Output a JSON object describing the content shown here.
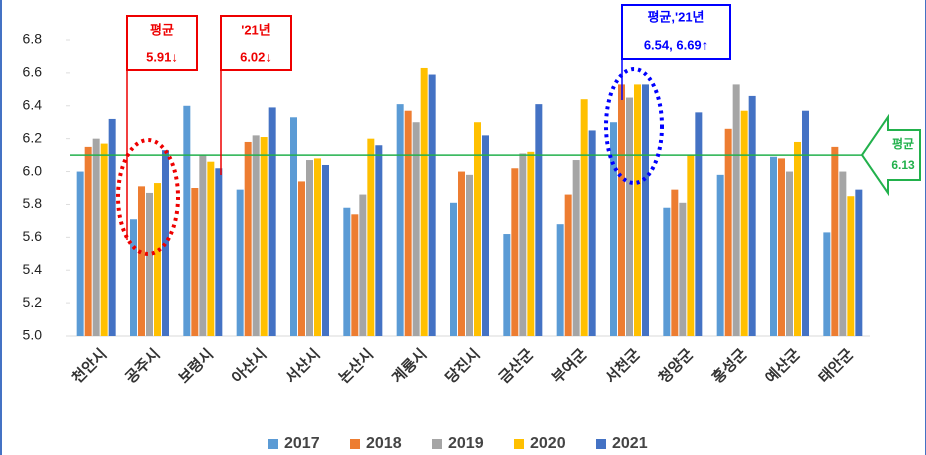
{
  "chart_data": {
    "type": "bar",
    "categories": [
      "천안시",
      "공주시",
      "보령시",
      "아산시",
      "서산시",
      "논산시",
      "계룡시",
      "당진시",
      "금산군",
      "부여군",
      "서천군",
      "청양군",
      "홍성군",
      "예산군",
      "태안군"
    ],
    "series": [
      {
        "name": "2017",
        "color": "#5b9bd5",
        "values": [
          6.0,
          5.71,
          6.4,
          5.89,
          6.33,
          5.78,
          6.41,
          5.81,
          5.62,
          5.68,
          6.3,
          5.78,
          5.98,
          6.09,
          5.63
        ]
      },
      {
        "name": "2018",
        "color": "#ed7d31",
        "values": [
          6.15,
          5.91,
          5.9,
          6.18,
          5.94,
          5.74,
          6.37,
          6.0,
          6.02,
          5.86,
          6.53,
          5.89,
          6.26,
          6.08,
          6.15
        ]
      },
      {
        "name": "2019",
        "color": "#a5a5a5",
        "values": [
          6.2,
          5.87,
          6.1,
          6.22,
          6.07,
          5.86,
          6.3,
          5.98,
          6.11,
          6.07,
          6.45,
          5.81,
          6.53,
          6.0,
          6.0
        ]
      },
      {
        "name": "2020",
        "color": "#ffc000",
        "values": [
          6.17,
          5.93,
          6.06,
          6.21,
          6.08,
          6.2,
          6.63,
          6.3,
          6.12,
          6.44,
          6.53,
          6.1,
          6.37,
          6.18,
          5.85
        ]
      },
      {
        "name": "2021",
        "color": "#4472c4",
        "values": [
          6.32,
          6.13,
          6.02,
          6.39,
          6.04,
          6.16,
          6.59,
          6.22,
          6.41,
          6.25,
          6.53,
          6.36,
          6.46,
          6.37,
          5.89
        ]
      }
    ],
    "ylim": [
      5.0,
      6.8
    ],
    "yticks": [
      {
        "value": 5.0,
        "label": "5.0"
      },
      5.2,
      5.4,
      5.6,
      5.8,
      {
        "value": 6.0,
        "label": "6.0"
      },
      6.2,
      6.4,
      6.6,
      6.8
    ],
    "grid": false,
    "reference_line": 6.1,
    "reference_color": "#22b14c",
    "legend": "bottom",
    "annotations": [
      {
        "title": "평균",
        "text": "5.91↓"
      },
      {
        "title": "'21년",
        "text": "6.02↓"
      },
      {
        "title": "평균,'21년",
        "text": "6.54, 6.69↑"
      },
      {
        "title": "평균",
        "text": "6.13"
      }
    ]
  }
}
